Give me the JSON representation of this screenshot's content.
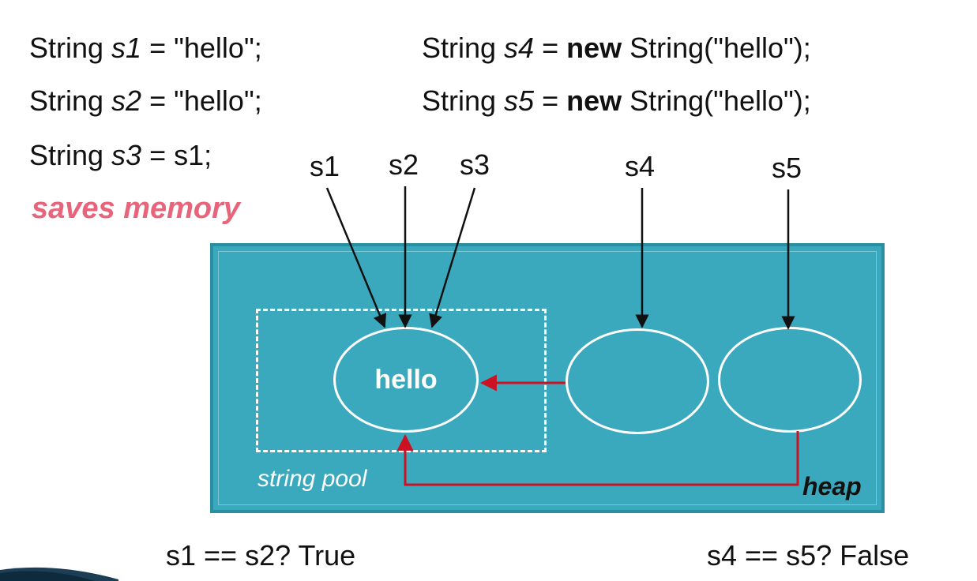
{
  "code": {
    "line1": {
      "prefix": "String ",
      "var": "s1",
      "suffix": " = \"hello\";"
    },
    "line2": {
      "prefix": "String ",
      "var": "s2",
      "suffix": " = \"hello\";"
    },
    "line3": {
      "prefix": "String ",
      "var": "s3",
      "suffix": " = s1;"
    },
    "line4": {
      "prefix": "String ",
      "var": "s4",
      "mid": " = ",
      "kw": "new",
      "suffix": " String(\"hello\");"
    },
    "line5": {
      "prefix": "String ",
      "var": "s5",
      "mid": " = ",
      "kw": "new",
      "suffix": " String(\"hello\");"
    }
  },
  "note": "saves memory",
  "refs": [
    "s1",
    "s2",
    "s3",
    "s4",
    "s5"
  ],
  "pool_label": "string pool",
  "heap_label": "heap",
  "pooled_object": "hello",
  "results": {
    "left": "s1 == s2? True",
    "right": "s4 == s5? False"
  },
  "colors": {
    "heap": "#3aa9bd",
    "arrow_black": "#111111",
    "arrow_red": "#cc1122",
    "note": "#e8647a"
  }
}
